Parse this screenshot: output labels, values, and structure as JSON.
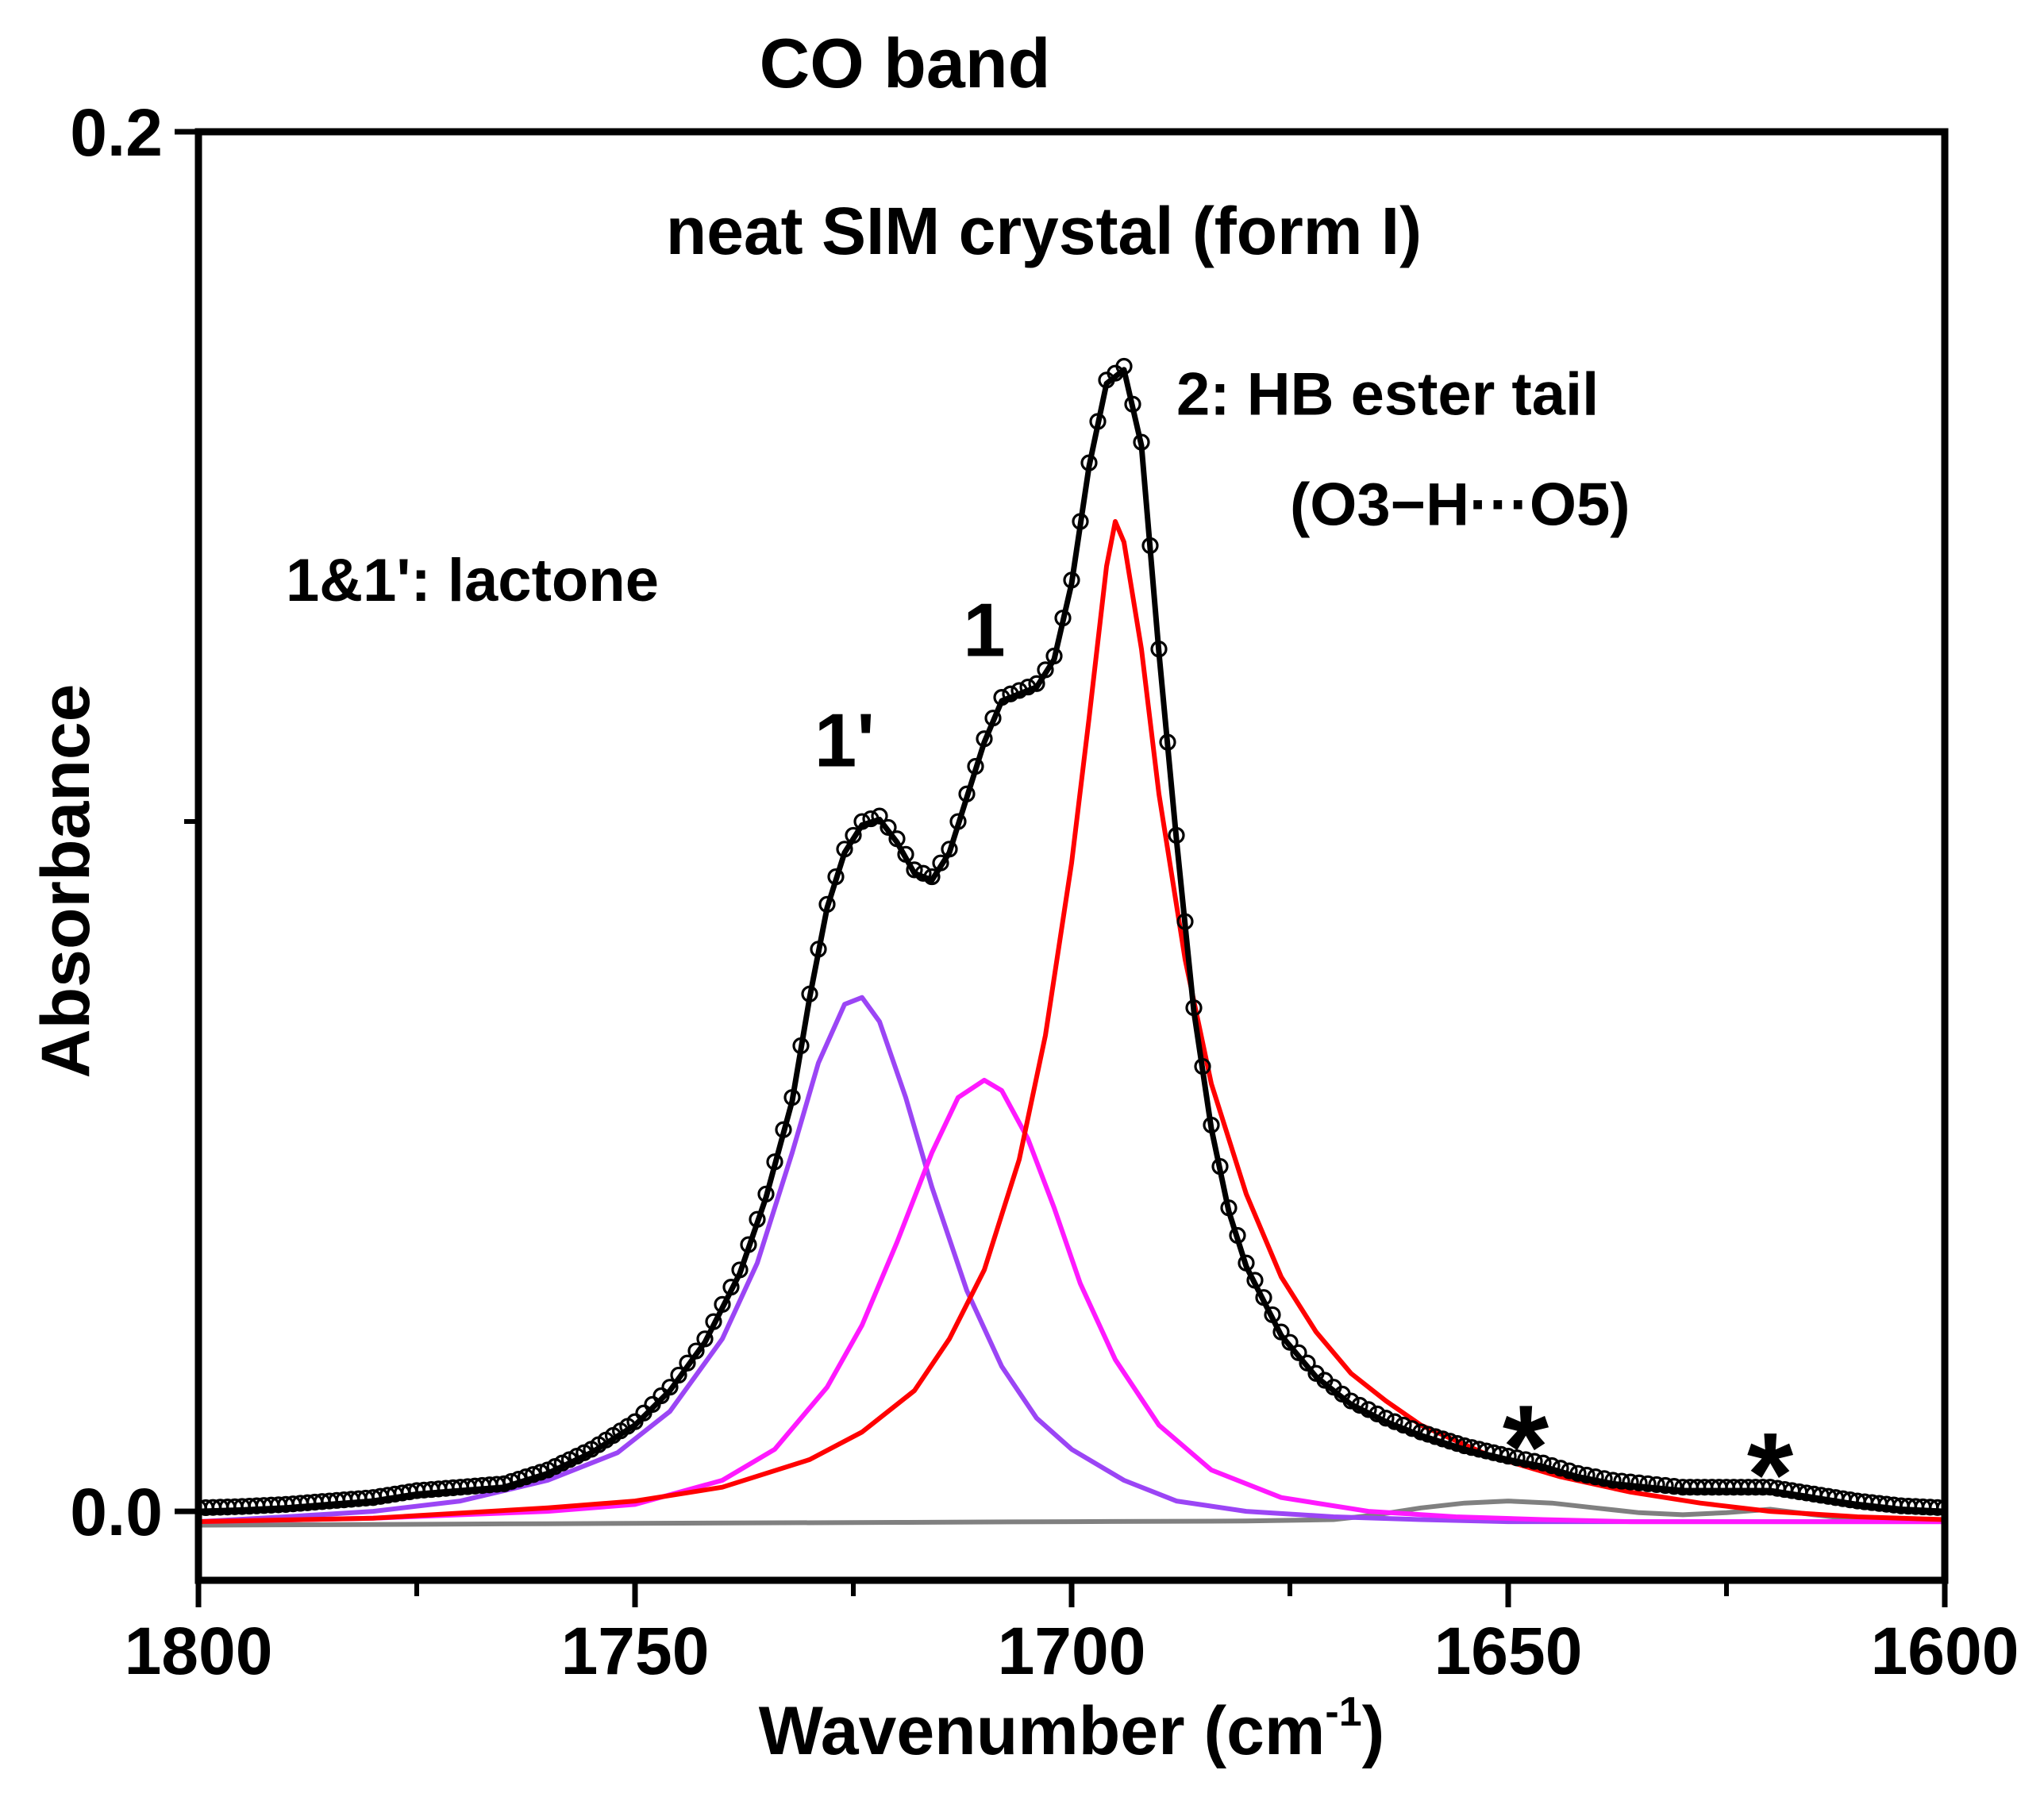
{
  "chart_data": {
    "type": "line",
    "title": "CO band",
    "subtitle": "neat SIM crystal (form I)",
    "xlabel": "Wavenumber (cm",
    "xlabel_sup": "-1",
    "xlabel_close": ")",
    "ylabel": "Absorbance",
    "xlim": [
      1800,
      1600
    ],
    "x_reversed": true,
    "ylim": [
      -0.01,
      0.2
    ],
    "x_ticks": [
      "1800",
      "1750",
      "1700",
      "1650",
      "1600"
    ],
    "x_tick_values": [
      1800,
      1750,
      1700,
      1650,
      1600
    ],
    "y_ticks": [
      "0.0",
      "0.2"
    ],
    "y_tick_values": [
      0.0,
      0.2
    ],
    "grid": false,
    "colors": {
      "experimental": "#000000",
      "fit_total": "#000000",
      "peak_1prime": "#9b45f5",
      "peak_1": "#ff19ff",
      "peak_2": "#ff0000",
      "baseline": "#808080"
    },
    "annotations": [
      {
        "text": "1&1': lactone",
        "x": 1790,
        "y": 0.132
      },
      {
        "text": "1'",
        "x": 1726,
        "y": 0.108
      },
      {
        "text": "1",
        "x": 1710,
        "y": 0.124
      },
      {
        "text": "2: HB ester tail",
        "x": 1688,
        "y": 0.159
      },
      {
        "text": "(O3−H···O5)",
        "x": 1675,
        "y": 0.143
      },
      {
        "text": "*",
        "x": 1648,
        "y": 0.008
      },
      {
        "text": "*",
        "x": 1620,
        "y": 0.004
      }
    ],
    "series": [
      {
        "role": "experimental",
        "style": "open-circles",
        "x": [
          1800,
          1795,
          1790,
          1785,
          1780,
          1775,
          1770,
          1765,
          1760,
          1755,
          1750,
          1746,
          1742,
          1738,
          1735,
          1732,
          1730,
          1728,
          1726,
          1724,
          1722,
          1720,
          1718,
          1716,
          1714,
          1712,
          1710,
          1708,
          1706,
          1704,
          1702,
          1700,
          1698,
          1696,
          1694,
          1692,
          1690,
          1688,
          1686,
          1684,
          1682,
          1680,
          1676,
          1672,
          1668,
          1664,
          1660,
          1655,
          1650,
          1646,
          1642,
          1638,
          1634,
          1630,
          1625,
          1620,
          1615,
          1610,
          1605,
          1600
        ],
        "y": [
          0.0005,
          0.0007,
          0.001,
          0.0015,
          0.002,
          0.003,
          0.0035,
          0.004,
          0.006,
          0.009,
          0.013,
          0.018,
          0.025,
          0.035,
          0.046,
          0.06,
          0.075,
          0.088,
          0.096,
          0.1,
          0.1008,
          0.0975,
          0.093,
          0.092,
          0.096,
          0.104,
          0.112,
          0.118,
          0.119,
          0.12,
          0.124,
          0.135,
          0.152,
          0.164,
          0.166,
          0.155,
          0.125,
          0.098,
          0.073,
          0.056,
          0.044,
          0.036,
          0.026,
          0.02,
          0.016,
          0.0135,
          0.0115,
          0.0095,
          0.008,
          0.007,
          0.0055,
          0.0045,
          0.004,
          0.0035,
          0.0035,
          0.0035,
          0.0025,
          0.0015,
          0.0008,
          0.0005
        ]
      },
      {
        "role": "fit_total",
        "style": "line",
        "x": [
          1800,
          1795,
          1790,
          1785,
          1780,
          1775,
          1770,
          1765,
          1760,
          1755,
          1750,
          1746,
          1742,
          1738,
          1735,
          1732,
          1730,
          1728,
          1726,
          1724,
          1722,
          1720,
          1718,
          1716,
          1714,
          1712,
          1710,
          1708,
          1706,
          1704,
          1702,
          1700,
          1698,
          1696,
          1694,
          1692,
          1690,
          1688,
          1686,
          1684,
          1682,
          1680,
          1676,
          1672,
          1668,
          1664,
          1660,
          1655,
          1650,
          1646,
          1642,
          1638,
          1634,
          1630,
          1625,
          1620,
          1615,
          1610,
          1605,
          1600
        ],
        "y": [
          0.0,
          0.0002,
          0.0005,
          0.001,
          0.0015,
          0.0025,
          0.003,
          0.0035,
          0.0055,
          0.0085,
          0.0125,
          0.0175,
          0.0245,
          0.0345,
          0.0455,
          0.0595,
          0.0745,
          0.0875,
          0.0955,
          0.0995,
          0.1003,
          0.097,
          0.0925,
          0.0915,
          0.0955,
          0.1035,
          0.1115,
          0.1175,
          0.1185,
          0.1195,
          0.1235,
          0.1345,
          0.1515,
          0.1635,
          0.1655,
          0.1545,
          0.1245,
          0.0975,
          0.0725,
          0.0555,
          0.0435,
          0.0355,
          0.0255,
          0.0195,
          0.0155,
          0.013,
          0.011,
          0.009,
          0.0075,
          0.0065,
          0.005,
          0.004,
          0.0035,
          0.003,
          0.003,
          0.003,
          0.002,
          0.001,
          0.0003,
          0.0
        ]
      },
      {
        "role": "peak_1prime",
        "style": "line",
        "x": [
          1800,
          1790,
          1780,
          1770,
          1760,
          1752,
          1746,
          1740,
          1736,
          1732,
          1729,
          1726,
          1724,
          1722,
          1719,
          1716,
          1712,
          1708,
          1704,
          1700,
          1694,
          1688,
          1680,
          1670,
          1660,
          1650,
          1640,
          1630,
          1620,
          1610,
          1600
        ],
        "y": [
          -0.0015,
          -0.0008,
          0.0,
          0.0015,
          0.0045,
          0.0085,
          0.0145,
          0.025,
          0.036,
          0.052,
          0.065,
          0.0735,
          0.0745,
          0.071,
          0.06,
          0.047,
          0.032,
          0.021,
          0.0135,
          0.009,
          0.0045,
          0.0015,
          0.0,
          -0.0008,
          -0.0012,
          -0.0015,
          -0.0015,
          -0.0015,
          -0.0015,
          -0.0015,
          -0.0015
        ]
      },
      {
        "role": "peak_1",
        "style": "line",
        "x": [
          1800,
          1780,
          1760,
          1750,
          1740,
          1734,
          1728,
          1724,
          1720,
          1716,
          1713,
          1710,
          1708,
          1705,
          1702,
          1699,
          1695,
          1690,
          1684,
          1676,
          1666,
          1656,
          1646,
          1636,
          1620,
          1600
        ],
        "y": [
          -0.0015,
          -0.001,
          0.0,
          0.001,
          0.0045,
          0.009,
          0.018,
          0.027,
          0.039,
          0.052,
          0.06,
          0.0625,
          0.061,
          0.054,
          0.044,
          0.033,
          0.022,
          0.0125,
          0.006,
          0.002,
          0.0,
          -0.0008,
          -0.0012,
          -0.0015,
          -0.0015,
          -0.0015
        ]
      },
      {
        "role": "peak_2",
        "style": "line",
        "x": [
          1800,
          1780,
          1760,
          1750,
          1740,
          1730,
          1724,
          1718,
          1714,
          1710,
          1706,
          1703,
          1700,
          1698,
          1696,
          1695,
          1694,
          1692,
          1690,
          1687,
          1684,
          1680,
          1676,
          1672,
          1668,
          1664,
          1660,
          1652,
          1644,
          1636,
          1628,
          1620,
          1610,
          1600
        ],
        "y": [
          -0.0015,
          -0.001,
          0.0005,
          0.0015,
          0.0035,
          0.0075,
          0.0115,
          0.0175,
          0.025,
          0.035,
          0.051,
          0.069,
          0.094,
          0.115,
          0.137,
          0.1435,
          0.1405,
          0.125,
          0.104,
          0.08,
          0.062,
          0.046,
          0.034,
          0.026,
          0.02,
          0.016,
          0.0125,
          0.008,
          0.005,
          0.0028,
          0.0012,
          0.0,
          -0.0008,
          -0.0012
        ]
      },
      {
        "role": "baseline",
        "style": "line",
        "x": [
          1800,
          1760,
          1720,
          1700,
          1680,
          1670,
          1665,
          1660,
          1655,
          1650,
          1645,
          1640,
          1635,
          1630,
          1625,
          1620,
          1615,
          1610,
          1600
        ],
        "y": [
          -0.002,
          -0.0018,
          -0.0016,
          -0.0015,
          -0.0014,
          -0.0012,
          -0.0005,
          0.0005,
          0.0012,
          0.0015,
          0.0012,
          0.0005,
          -0.0002,
          -0.0005,
          -0.0002,
          0.0003,
          -0.0005,
          -0.0012,
          -0.0015
        ]
      }
    ]
  }
}
